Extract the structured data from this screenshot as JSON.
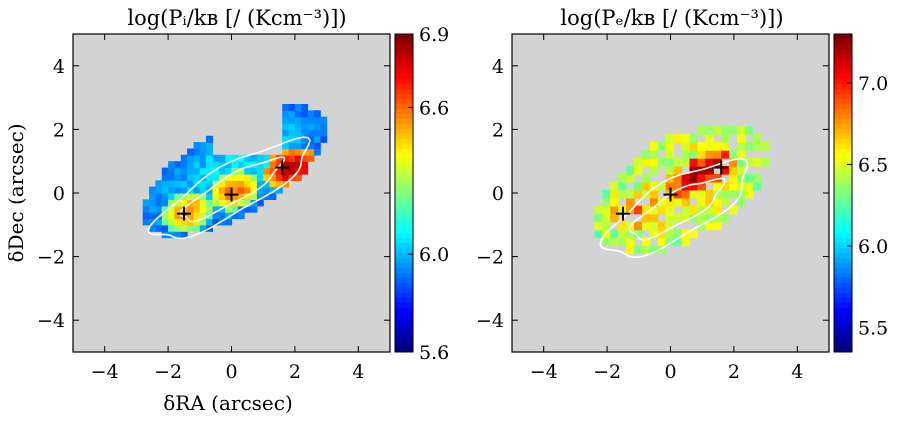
{
  "chart_data": [
    {
      "type": "heatmap",
      "title": "log(Pᵢ/kʙ [/ (Kcm⁻³)])",
      "xlabel": "δRA (arcsec)",
      "ylabel": "δDec (arcsec)",
      "xlim": [
        -5,
        5
      ],
      "ylim": [
        -5,
        5
      ],
      "xticks": [
        -4,
        -2,
        0,
        2,
        4
      ],
      "xtick_labels": [
        "−4",
        "−2",
        "0",
        "2",
        "4"
      ],
      "yticks": [
        -4,
        -2,
        0,
        2,
        4
      ],
      "ytick_labels": [
        "−4",
        "−2",
        "0",
        "2",
        "4"
      ],
      "colorbar": {
        "min": 5.6,
        "max": 6.9,
        "ticks": [
          5.6,
          6.0,
          6.6,
          6.9
        ],
        "tick_labels": [
          "5.6",
          "6.0",
          "6.6",
          "6.9"
        ]
      },
      "background_color": "#d3d3d3",
      "markers": [
        {
          "x": -1.5,
          "y": -0.65
        },
        {
          "x": 0.0,
          "y": -0.05
        },
        {
          "x": 1.6,
          "y": 0.8
        }
      ],
      "blobs": [
        {
          "x": 0.0,
          "y": 0.6,
          "sx": 3.3,
          "sy": 1.35,
          "rot": 30,
          "value": 6.05
        },
        {
          "x": -1.5,
          "y": -0.7,
          "sx": 0.8,
          "sy": 0.6,
          "rot": 20,
          "value": 6.55
        },
        {
          "x": 0.0,
          "y": 0.0,
          "sx": 0.8,
          "sy": 0.6,
          "rot": 20,
          "value": 6.6
        },
        {
          "x": 1.8,
          "y": 0.7,
          "sx": 0.9,
          "sy": 0.6,
          "rot": 20,
          "value": 6.8
        }
      ]
    },
    {
      "type": "heatmap",
      "title": "log(Pₑ/kʙ [/ (Kcm⁻³)])",
      "xlabel": "",
      "ylabel": "",
      "xlim": [
        -5,
        5
      ],
      "ylim": [
        -5,
        5
      ],
      "xticks": [
        -4,
        -2,
        0,
        2,
        4
      ],
      "xtick_labels": [
        "−4",
        "−2",
        "0",
        "2",
        "4"
      ],
      "yticks": [
        -4,
        -2,
        0,
        2,
        4
      ],
      "ytick_labels": [
        "−4",
        "−2",
        "0",
        "2",
        "4"
      ],
      "colorbar": {
        "min": 5.35,
        "max": 7.3,
        "ticks": [
          5.5,
          6.0,
          6.5,
          7.0
        ],
        "tick_labels": [
          "5.5",
          "6.0",
          "6.5",
          "7.0"
        ]
      },
      "background_color": "#d3d3d3",
      "markers": [
        {
          "x": -1.5,
          "y": -0.65
        },
        {
          "x": 0.0,
          "y": -0.05
        },
        {
          "x": 1.6,
          "y": 0.8
        }
      ],
      "blobs": [
        {
          "x": 0.2,
          "y": 0.0,
          "sx": 3.0,
          "sy": 1.6,
          "rot": 30,
          "value": 6.55
        },
        {
          "x": -1.2,
          "y": -0.7,
          "sx": 1.0,
          "sy": 0.7,
          "rot": 20,
          "value": 6.8
        },
        {
          "x": 0.8,
          "y": 0.5,
          "sx": 1.2,
          "sy": 0.5,
          "rot": 25,
          "value": 7.15
        }
      ]
    }
  ]
}
